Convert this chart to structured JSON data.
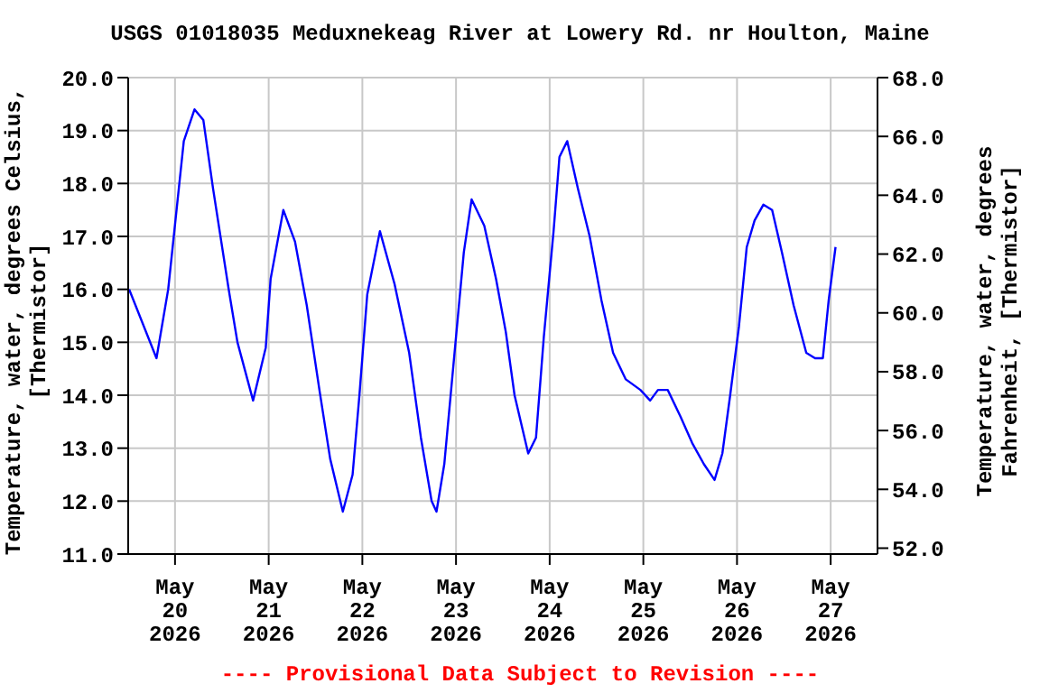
{
  "chart_data": {
    "type": "line",
    "title": "USGS 01018035 Meduxnekeag River at Lowery Rd. nr Houlton, Maine",
    "ylabel": "Temperature, water, degrees Celsius, [Thermistor]",
    "y2label": "Temperature, water, degrees Fahrenheit, [Thermistor]",
    "annotations": [
      "---- Provisional Data Subject to Revision ----"
    ],
    "x": [
      "2026-05-19T12:15",
      "2026-05-19T19:15",
      "2026-05-19T22:15",
      "2026-05-20T02:15",
      "2026-05-20T05:00",
      "2026-05-20T07:15",
      "2026-05-20T09:45",
      "2026-05-20T13:45",
      "2026-05-20T16:00",
      "2026-05-20T20:00",
      "2026-05-20T23:15",
      "2026-05-21T00:30",
      "2026-05-21T03:45",
      "2026-05-21T06:45",
      "2026-05-21T09:45",
      "2026-05-21T13:00",
      "2026-05-21T15:45",
      "2026-05-21T19:00",
      "2026-05-21T21:30",
      "2026-05-21T23:15",
      "2026-05-22T01:15",
      "2026-05-22T04:30",
      "2026-05-22T08:15",
      "2026-05-22T12:00",
      "2026-05-22T15:00",
      "2026-05-22T17:45",
      "2026-05-22T19:00",
      "2026-05-22T21:00",
      "2026-05-22T23:30",
      "2026-05-23T02:00",
      "2026-05-23T04:00",
      "2026-05-23T07:15",
      "2026-05-23T10:15",
      "2026-05-23T12:45",
      "2026-05-23T15:00",
      "2026-05-23T18:30",
      "2026-05-23T20:30",
      "2026-05-23T22:30",
      "2026-05-24T01:00",
      "2026-05-24T02:30",
      "2026-05-24T04:30",
      "2026-05-24T07:15",
      "2026-05-24T10:15",
      "2026-05-24T13:15",
      "2026-05-24T16:15",
      "2026-05-24T19:30",
      "2026-05-24T23:15",
      "2026-05-25T01:45",
      "2026-05-25T03:45",
      "2026-05-25T06:15",
      "2026-05-25T09:30",
      "2026-05-25T12:30",
      "2026-05-25T15:30",
      "2026-05-25T18:15",
      "2026-05-25T20:15",
      "2026-05-25T22:15",
      "2026-05-26T00:30",
      "2026-05-26T02:30",
      "2026-05-26T04:30",
      "2026-05-26T06:45",
      "2026-05-26T09:00",
      "2026-05-26T11:30",
      "2026-05-26T14:30",
      "2026-05-26T17:45",
      "2026-05-26T20:00",
      "2026-05-26T22:00",
      "2026-05-26T23:30",
      "2026-05-27T01:15"
    ],
    "values": [
      16.0,
      14.7,
      16.0,
      18.8,
      19.4,
      19.2,
      17.9,
      16.0,
      15.0,
      13.9,
      14.9,
      16.2,
      17.5,
      16.9,
      15.7,
      14.1,
      12.8,
      11.8,
      12.5,
      14.0,
      15.9,
      17.1,
      16.1,
      14.8,
      13.2,
      12.0,
      11.8,
      12.7,
      14.7,
      16.7,
      17.7,
      17.2,
      16.2,
      15.2,
      14.0,
      12.9,
      13.2,
      15.1,
      17.1,
      18.5,
      18.8,
      17.9,
      17.0,
      15.8,
      14.8,
      14.3,
      14.1,
      13.9,
      14.1,
      14.1,
      13.6,
      13.1,
      12.7,
      12.4,
      12.9,
      14.0,
      15.3,
      16.8,
      17.3,
      17.6,
      17.5,
      16.7,
      15.7,
      14.8,
      14.7,
      14.7,
      15.8,
      16.8
    ],
    "color": "#0000ff",
    "marker": "none",
    "xlim": [
      "2026-05-19T12:00",
      "2026-05-27T12:00"
    ],
    "xticks": [
      {
        "value": "2026-05-20",
        "label": "May\n20\n2026"
      },
      {
        "value": "2026-05-21",
        "label": "May\n21\n2026"
      },
      {
        "value": "2026-05-22",
        "label": "May\n22\n2026"
      },
      {
        "value": "2026-05-23",
        "label": "May\n23\n2026"
      },
      {
        "value": "2026-05-24",
        "label": "May\n24\n2026"
      },
      {
        "value": "2026-05-25",
        "label": "May\n25\n2026"
      },
      {
        "value": "2026-05-26",
        "label": "May\n26\n2026"
      },
      {
        "value": "2026-05-27",
        "label": "May\n27\n2026"
      }
    ],
    "ylim": [
      11,
      20
    ],
    "yticks": [
      {
        "value": 11,
        "label": "11.0"
      },
      {
        "value": 12,
        "label": "12.0"
      },
      {
        "value": 13,
        "label": "13.0"
      },
      {
        "value": 14,
        "label": "14.0"
      },
      {
        "value": 15,
        "label": "15.0"
      },
      {
        "value": 16,
        "label": "16.0"
      },
      {
        "value": 17,
        "label": "17.0"
      },
      {
        "value": 18,
        "label": "18.0"
      },
      {
        "value": 19,
        "label": "19.0"
      },
      {
        "value": 20,
        "label": "20.0"
      }
    ],
    "y2lim": [
      51.8,
      68
    ],
    "y2ticks": [
      {
        "value": 52,
        "label": "52.0"
      },
      {
        "value": 54,
        "label": "54.0"
      },
      {
        "value": 56,
        "label": "56.0"
      },
      {
        "value": 58,
        "label": "58.0"
      },
      {
        "value": 60,
        "label": "60.0"
      },
      {
        "value": 62,
        "label": "62.0"
      },
      {
        "value": 64,
        "label": "64.0"
      },
      {
        "value": 66,
        "label": "66.0"
      },
      {
        "value": 68,
        "label": "68.0"
      }
    ],
    "grid": true
  }
}
